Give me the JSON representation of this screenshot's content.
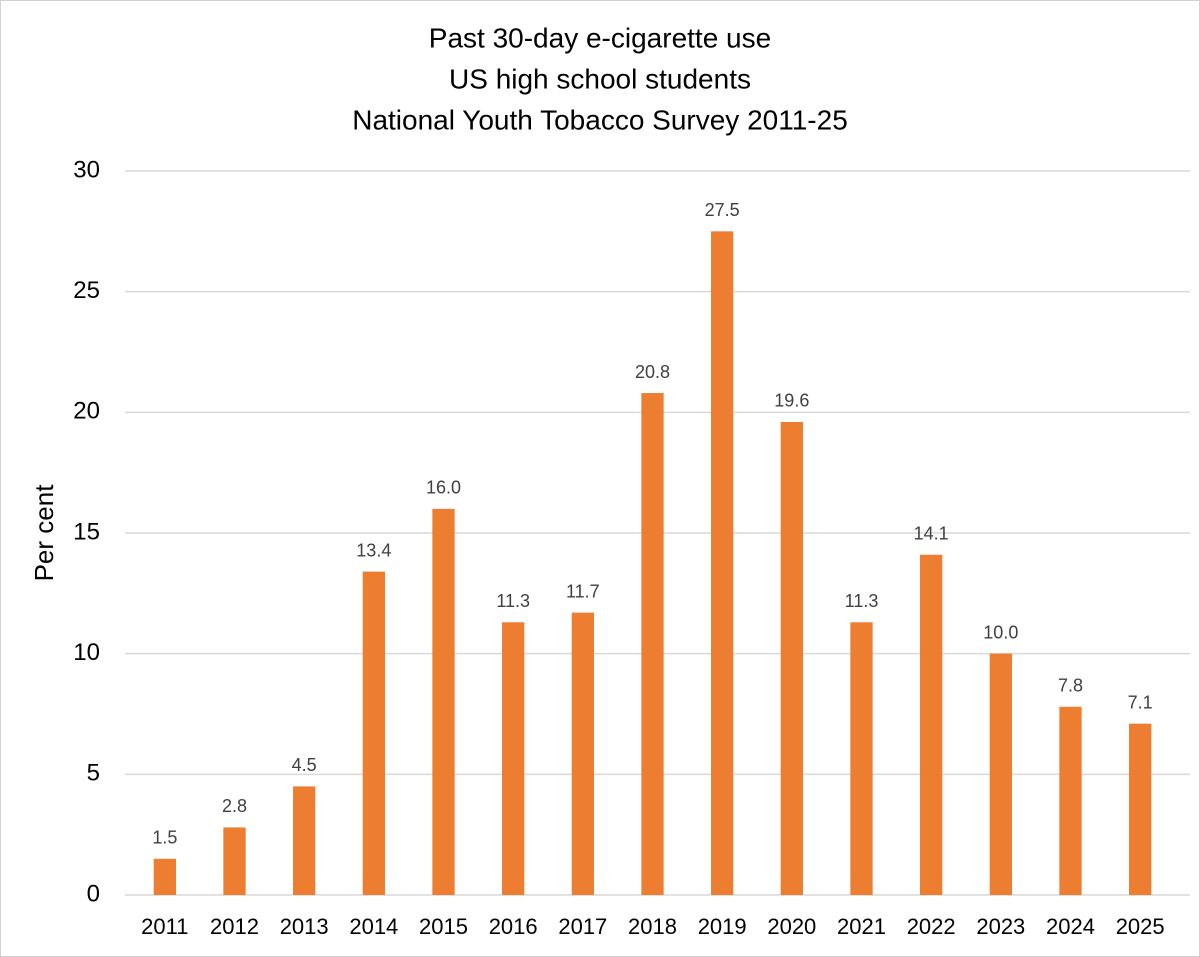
{
  "chart_data": {
    "type": "bar",
    "title": [
      "Past 30-day e-cigarette use",
      "US high school students",
      "National Youth Tobacco Survey  2011-25"
    ],
    "y_label": "Per cent",
    "categories": [
      "2011",
      "2012",
      "2013",
      "2014",
      "2015",
      "2016",
      "2017",
      "2018",
      "2019",
      "2020",
      "2021",
      "2022",
      "2023",
      "2024",
      "2025"
    ],
    "values": [
      1.5,
      2.8,
      4.5,
      13.4,
      16.0,
      11.3,
      11.7,
      20.8,
      27.5,
      19.6,
      11.3,
      14.1,
      10.0,
      7.8,
      7.1
    ],
    "value_labels": [
      "1.5",
      "2.8",
      "4.5",
      "13.4",
      "16.0",
      "11.3",
      "11.7",
      "20.8",
      "27.5",
      "19.6",
      "11.3",
      "14.1",
      "10.0",
      "7.8",
      "7.1"
    ],
    "color": "#ed7d31",
    "ylim": [
      0,
      30
    ],
    "yticks": [
      0,
      5,
      10,
      15,
      20,
      25,
      30
    ],
    "grid": true
  }
}
